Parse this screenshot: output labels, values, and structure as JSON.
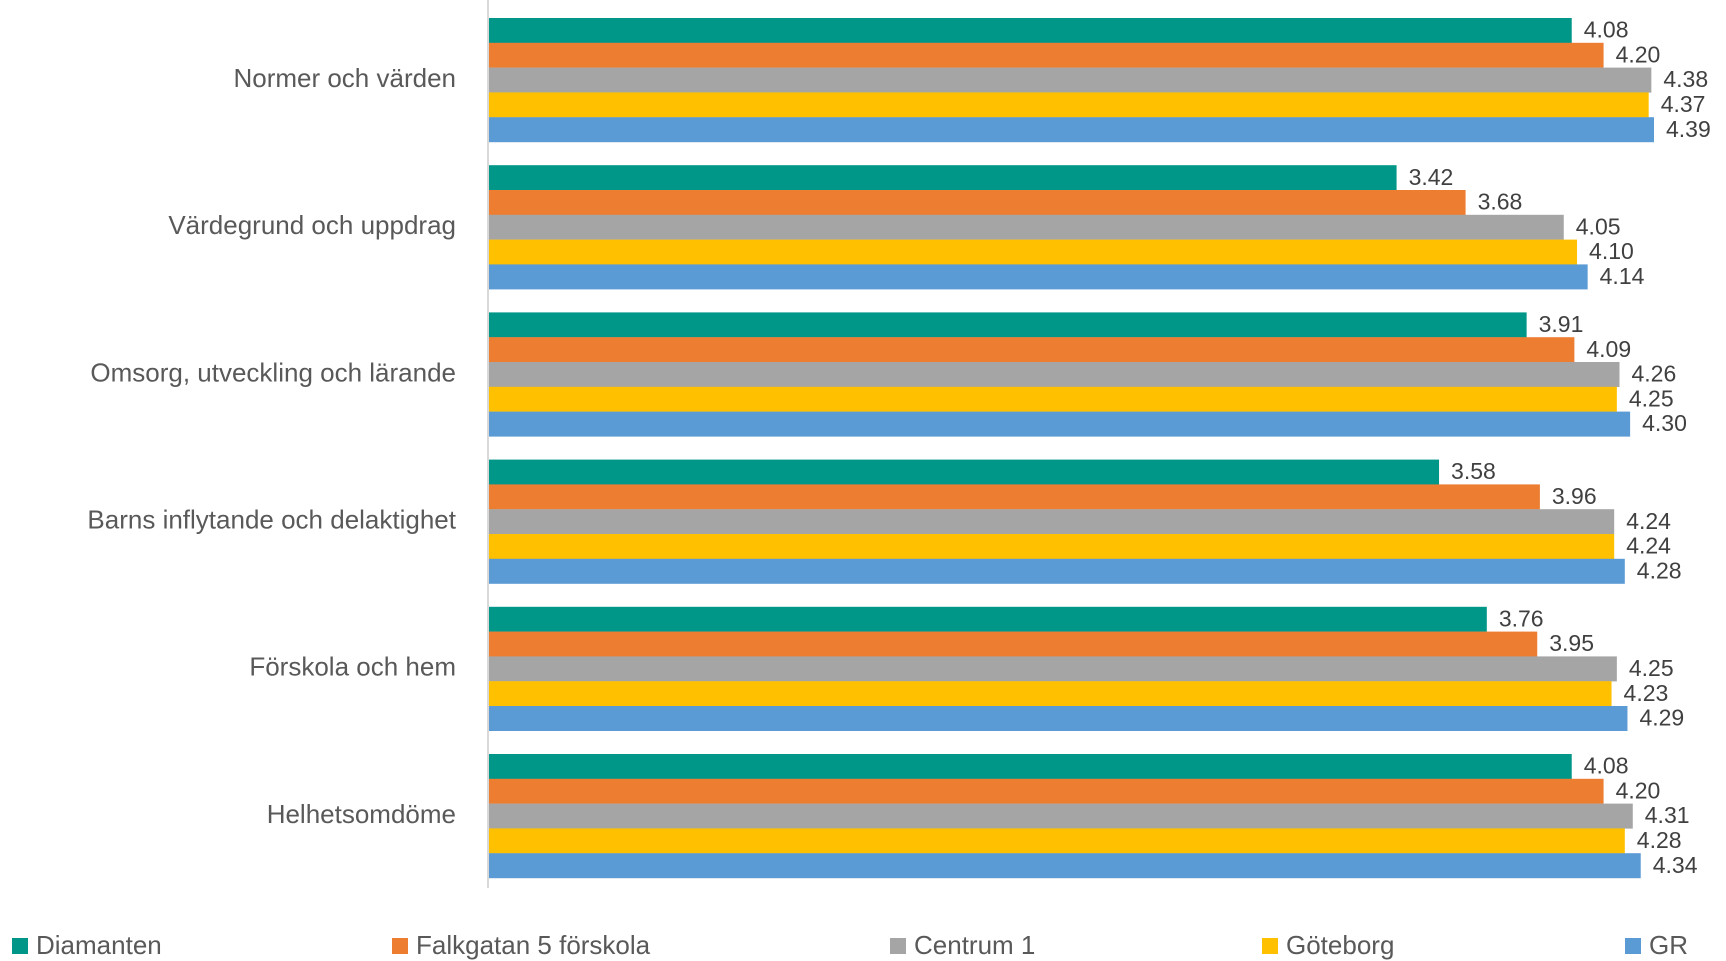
{
  "chart_data": {
    "type": "bar",
    "orientation": "horizontal",
    "categories": [
      "Normer och värden",
      "Värdegrund och uppdrag",
      "Omsorg, utveckling och lärande",
      "Barns inflytande och delaktighet",
      "Förskola och hem",
      "Helhetsomdöme"
    ],
    "series": [
      {
        "name": "Diamanten",
        "color": "#009688",
        "values": [
          4.08,
          3.42,
          3.91,
          3.58,
          3.76,
          4.08
        ],
        "labels": [
          "4.08",
          "3.42",
          "3.91",
          "3.58",
          "3.76",
          "4.08"
        ]
      },
      {
        "name": "Falkgatan 5 förskola",
        "color": "#ED7D31",
        "values": [
          4.2,
          3.68,
          4.09,
          3.96,
          3.95,
          4.2
        ],
        "labels": [
          "4.20",
          "3.68",
          "4.09",
          "3.96",
          "3.95",
          "4.20"
        ]
      },
      {
        "name": "Centrum 1",
        "color": "#A5A5A5",
        "values": [
          4.38,
          4.05,
          4.26,
          4.24,
          4.25,
          4.31
        ],
        "labels": [
          "4.38",
          "4.05",
          "4.26",
          "4.24",
          "4.25",
          "4.31"
        ]
      },
      {
        "name": "Göteborg",
        "color": "#FFC000",
        "values": [
          4.37,
          4.1,
          4.25,
          4.24,
          4.23,
          4.28
        ],
        "labels": [
          "4.37",
          "4.10",
          "4.25",
          "4.24",
          "4.23",
          "4.28"
        ]
      },
      {
        "name": "GR",
        "color": "#5B9BD5",
        "values": [
          4.39,
          4.14,
          4.3,
          4.28,
          4.29,
          4.34
        ],
        "labels": [
          "4.39",
          "4.14",
          "4.30",
          "4.28",
          "4.29",
          "4.34"
        ]
      }
    ],
    "xlim": [
      0,
      4.39
    ],
    "axis_color": "#D9D9D9",
    "grid": false,
    "data_labels": true,
    "legend_position": "bottom"
  }
}
